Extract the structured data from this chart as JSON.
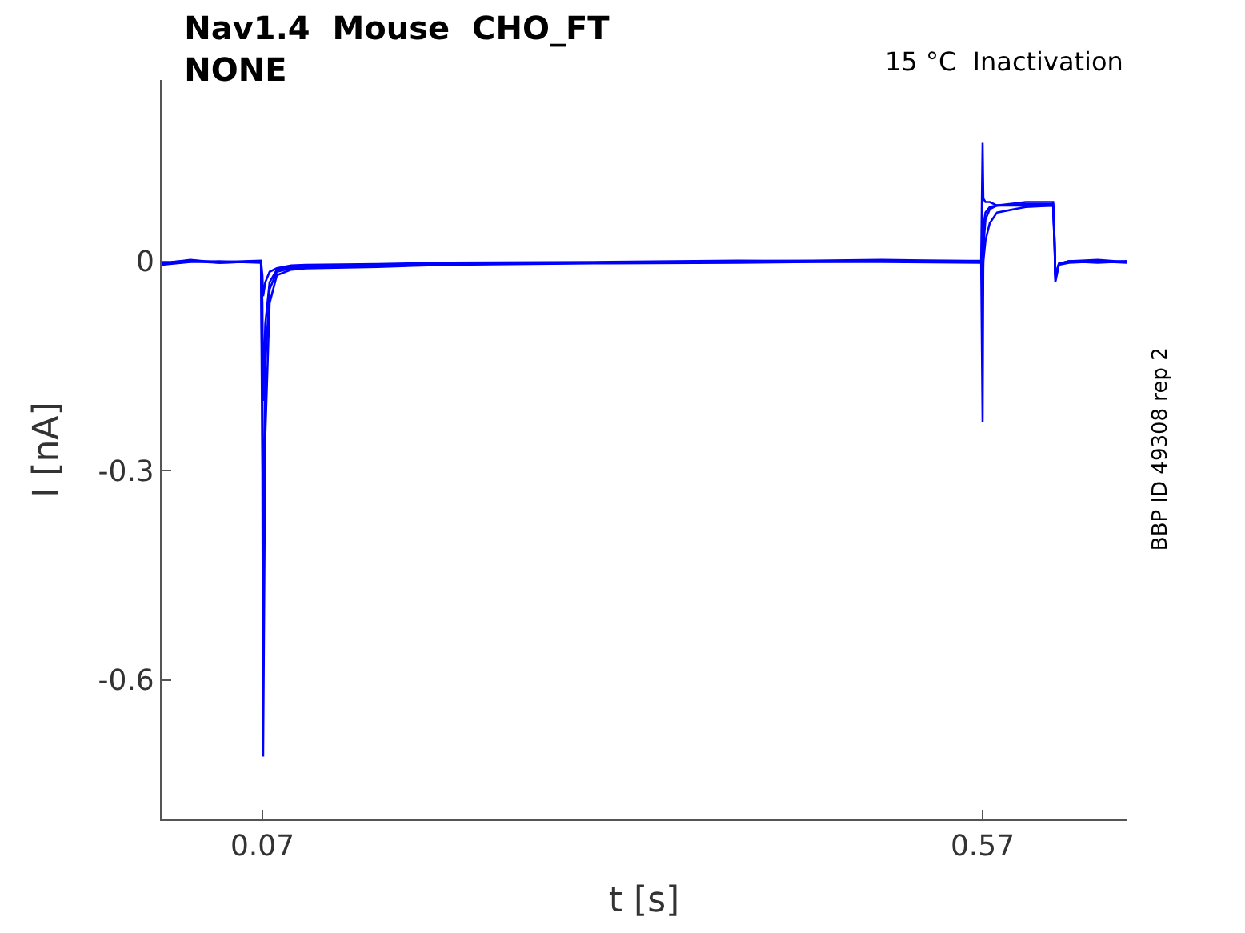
{
  "chart_data": {
    "type": "line",
    "title": "Nav1.4  Mouse  CHO_FT\nNONE",
    "xlabel": "t [s]",
    "ylabel": "I [nA]",
    "annotations": [
      "15 °C  Inactivation",
      "BBP ID 49308 rep 2"
    ],
    "x": [
      0,
      0.02,
      0.04,
      0.069,
      0.07,
      0.0705,
      0.072,
      0.075,
      0.08,
      0.09,
      0.1,
      0.15,
      0.2,
      0.3,
      0.4,
      0.5,
      0.569,
      0.57,
      0.5705,
      0.572,
      0.575,
      0.58,
      0.6,
      0.619,
      0.62,
      0.6205,
      0.623,
      0.63,
      0.65,
      0.67
    ],
    "series": [
      {
        "color": "#0000ff",
        "values": [
          -0.004,
          0.0,
          -0.002,
          0.0,
          -0.3,
          -0.71,
          -0.25,
          -0.06,
          -0.02,
          -0.012,
          -0.01,
          -0.008,
          -0.005,
          -0.003,
          -0.002,
          0.0,
          0.0,
          0.17,
          0.09,
          0.085,
          0.085,
          0.08,
          0.085,
          0.085,
          0.03,
          -0.03,
          -0.005,
          -0.002,
          0.0,
          -0.002
        ]
      },
      {
        "color": "#0000ff",
        "values": [
          -0.003,
          0.002,
          -0.002,
          0.0,
          -0.2,
          -0.5,
          -0.15,
          -0.04,
          -0.015,
          -0.01,
          -0.008,
          -0.006,
          -0.004,
          -0.002,
          0.0,
          0.002,
          0.0,
          -0.23,
          0.02,
          0.06,
          0.075,
          0.08,
          0.08,
          0.08,
          0.02,
          -0.025,
          -0.004,
          0.0,
          -0.002,
          0.0
        ]
      },
      {
        "color": "#0000ff",
        "values": [
          -0.005,
          -0.001,
          0.0,
          -0.002,
          -0.06,
          -0.2,
          -0.09,
          -0.03,
          -0.012,
          -0.008,
          -0.006,
          -0.005,
          -0.003,
          -0.002,
          0.0,
          -0.001,
          -0.002,
          -0.05,
          0.0,
          0.03,
          0.055,
          0.07,
          0.078,
          0.08,
          0.02,
          -0.02,
          -0.003,
          0.0,
          0.002,
          -0.001
        ]
      },
      {
        "color": "#0000ff",
        "values": [
          -0.002,
          0.001,
          -0.001,
          0.001,
          -0.02,
          -0.05,
          -0.03,
          -0.015,
          -0.01,
          -0.006,
          -0.005,
          -0.004,
          -0.002,
          -0.001,
          0.001,
          0.0,
          0.001,
          0.02,
          0.05,
          0.07,
          0.078,
          0.08,
          0.082,
          0.082,
          0.03,
          -0.02,
          -0.004,
          0.0,
          -0.001,
          0.0
        ]
      }
    ],
    "xlim": [
      0,
      0.67
    ],
    "ylim": [
      -0.8,
      0.26
    ],
    "xticks": [
      0.07,
      0.57
    ],
    "yticks": [
      0,
      -0.3,
      -0.6
    ],
    "marker": "none",
    "line_style": "solid"
  }
}
